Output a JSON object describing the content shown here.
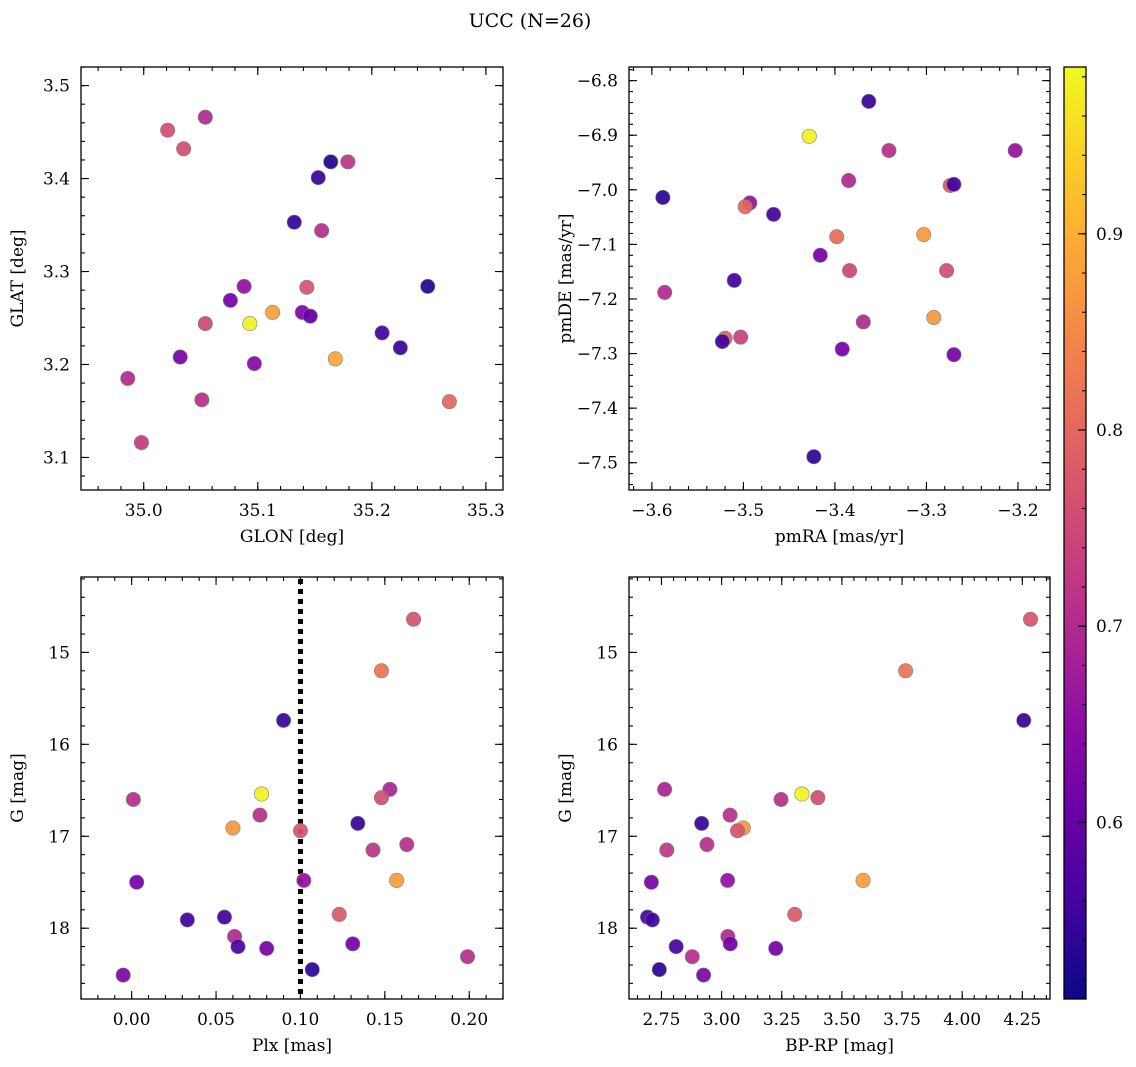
{
  "figure": {
    "title": "UCC (N=26)"
  },
  "colorbar": {
    "range": [
      0.51,
      0.985
    ],
    "ticks": [
      0.6,
      0.7,
      0.8,
      0.9
    ],
    "tick_labels": [
      "0.6",
      "0.7",
      "0.8",
      "0.9"
    ],
    "colormap": "plasma"
  },
  "chart_data": [
    {
      "type": "scatter",
      "xlabel": "GLON [deg]",
      "ylabel": "GLAT [deg]",
      "xlim": [
        34.945,
        35.315
      ],
      "ylim": [
        3.065,
        3.52
      ],
      "xticks": [
        35.0,
        35.1,
        35.2,
        35.3
      ],
      "xtick_labels": [
        "35.0",
        "35.1",
        "35.2",
        "35.3"
      ],
      "yticks": [
        3.1,
        3.2,
        3.3,
        3.4,
        3.5
      ],
      "ytick_labels": [
        "3.1",
        "3.2",
        "3.3",
        "3.4",
        "3.5"
      ],
      "y_inverted": false,
      "points": [
        {
          "x": 35.021,
          "y": 3.452,
          "c": 0.76
        },
        {
          "x": 35.035,
          "y": 3.432,
          "c": 0.76
        },
        {
          "x": 35.054,
          "y": 3.466,
          "c": 0.7
        },
        {
          "x": 35.164,
          "y": 3.418,
          "c": 0.53
        },
        {
          "x": 35.153,
          "y": 3.401,
          "c": 0.55
        },
        {
          "x": 35.179,
          "y": 3.418,
          "c": 0.72
        },
        {
          "x": 35.132,
          "y": 3.353,
          "c": 0.55
        },
        {
          "x": 35.156,
          "y": 3.344,
          "c": 0.71
        },
        {
          "x": 35.088,
          "y": 3.284,
          "c": 0.66
        },
        {
          "x": 35.143,
          "y": 3.283,
          "c": 0.77
        },
        {
          "x": 35.249,
          "y": 3.284,
          "c": 0.53
        },
        {
          "x": 35.076,
          "y": 3.269,
          "c": 0.62
        },
        {
          "x": 35.113,
          "y": 3.256,
          "c": 0.88
        },
        {
          "x": 35.139,
          "y": 3.256,
          "c": 0.63
        },
        {
          "x": 35.146,
          "y": 3.252,
          "c": 0.6
        },
        {
          "x": 35.054,
          "y": 3.244,
          "c": 0.75
        },
        {
          "x": 35.093,
          "y": 3.244,
          "c": 0.98
        },
        {
          "x": 35.209,
          "y": 3.234,
          "c": 0.56
        },
        {
          "x": 35.225,
          "y": 3.218,
          "c": 0.55
        },
        {
          "x": 35.032,
          "y": 3.208,
          "c": 0.62
        },
        {
          "x": 35.097,
          "y": 3.201,
          "c": 0.64
        },
        {
          "x": 35.168,
          "y": 3.206,
          "c": 0.89
        },
        {
          "x": 34.986,
          "y": 3.185,
          "c": 0.7
        },
        {
          "x": 35.051,
          "y": 3.162,
          "c": 0.71
        },
        {
          "x": 35.268,
          "y": 3.16,
          "c": 0.8
        },
        {
          "x": 34.998,
          "y": 3.116,
          "c": 0.73
        }
      ]
    },
    {
      "type": "scatter",
      "xlabel": "pmRA [mas/yr]",
      "ylabel": "pmDE [mas/yr]",
      "xlim": [
        -3.625,
        -3.165
      ],
      "ylim": [
        -7.55,
        -6.775
      ],
      "xticks": [
        -3.6,
        -3.5,
        -3.4,
        -3.3,
        -3.2
      ],
      "xtick_labels": [
        "−3.6",
        "−3.5",
        "−3.4",
        "−3.3",
        "−3.2"
      ],
      "yticks": [
        -7.5,
        -7.4,
        -7.3,
        -7.2,
        -7.1,
        -7.0,
        -6.9,
        -6.8
      ],
      "ytick_labels": [
        "−7.5",
        "−7.4",
        "−7.3",
        "−7.2",
        "−7.1",
        "−7.0",
        "−6.9",
        "−6.8"
      ],
      "y_inverted": false,
      "points": [
        {
          "x": -3.363,
          "y": -6.838,
          "c": 0.55
        },
        {
          "x": -3.428,
          "y": -6.902,
          "c": 0.98
        },
        {
          "x": -3.341,
          "y": -6.928,
          "c": 0.71
        },
        {
          "x": -3.203,
          "y": -6.928,
          "c": 0.66
        },
        {
          "x": -3.385,
          "y": -6.983,
          "c": 0.7
        },
        {
          "x": -3.274,
          "y": -6.992,
          "c": 0.77
        },
        {
          "x": -3.27,
          "y": -6.99,
          "c": 0.56
        },
        {
          "x": -3.588,
          "y": -7.014,
          "c": 0.54
        },
        {
          "x": -3.493,
          "y": -7.024,
          "c": 0.66
        },
        {
          "x": -3.498,
          "y": -7.031,
          "c": 0.8
        },
        {
          "x": -3.467,
          "y": -7.045,
          "c": 0.56
        },
        {
          "x": -3.398,
          "y": -7.086,
          "c": 0.81
        },
        {
          "x": -3.303,
          "y": -7.082,
          "c": 0.87
        },
        {
          "x": -3.416,
          "y": -7.12,
          "c": 0.62
        },
        {
          "x": -3.384,
          "y": -7.148,
          "c": 0.75
        },
        {
          "x": -3.278,
          "y": -7.148,
          "c": 0.76
        },
        {
          "x": -3.51,
          "y": -7.166,
          "c": 0.56
        },
        {
          "x": -3.586,
          "y": -7.188,
          "c": 0.7
        },
        {
          "x": -3.292,
          "y": -7.234,
          "c": 0.87
        },
        {
          "x": -3.369,
          "y": -7.242,
          "c": 0.7
        },
        {
          "x": -3.503,
          "y": -7.27,
          "c": 0.74
        },
        {
          "x": -3.52,
          "y": -7.272,
          "c": 0.79
        },
        {
          "x": -3.523,
          "y": -7.278,
          "c": 0.56
        },
        {
          "x": -3.392,
          "y": -7.292,
          "c": 0.62
        },
        {
          "x": -3.27,
          "y": -7.302,
          "c": 0.62
        },
        {
          "x": -3.423,
          "y": -7.489,
          "c": 0.54
        }
      ]
    },
    {
      "type": "scatter",
      "xlabel": "Plx [mas]",
      "ylabel": "G [mag]",
      "xlim": [
        -0.03,
        0.22
      ],
      "ylim": [
        18.77,
        14.18
      ],
      "xticks": [
        0.0,
        0.05,
        0.1,
        0.15,
        0.2
      ],
      "xtick_labels": [
        "0.00",
        "0.05",
        "0.10",
        "0.15",
        "0.20"
      ],
      "yticks": [
        15,
        16,
        17,
        18
      ],
      "ytick_labels": [
        "15",
        "16",
        "17",
        "18"
      ],
      "y_inverted": true,
      "reference_line": {
        "x": 0.1,
        "style": "dotted"
      },
      "points": [
        {
          "x": 0.167,
          "y": 14.64,
          "c": 0.77
        },
        {
          "x": 0.148,
          "y": 15.2,
          "c": 0.82
        },
        {
          "x": 0.09,
          "y": 15.74,
          "c": 0.55
        },
        {
          "x": 0.001,
          "y": 16.6,
          "c": 0.71
        },
        {
          "x": 0.077,
          "y": 16.54,
          "c": 0.98
        },
        {
          "x": 0.153,
          "y": 16.49,
          "c": 0.69
        },
        {
          "x": 0.148,
          "y": 16.58,
          "c": 0.76
        },
        {
          "x": 0.076,
          "y": 16.77,
          "c": 0.71
        },
        {
          "x": 0.06,
          "y": 16.91,
          "c": 0.87
        },
        {
          "x": 0.1,
          "y": 16.94,
          "c": 0.77
        },
        {
          "x": 0.134,
          "y": 16.86,
          "c": 0.55
        },
        {
          "x": 0.143,
          "y": 17.15,
          "c": 0.72
        },
        {
          "x": 0.163,
          "y": 17.09,
          "c": 0.71
        },
        {
          "x": 0.003,
          "y": 17.5,
          "c": 0.62
        },
        {
          "x": 0.102,
          "y": 17.48,
          "c": 0.66
        },
        {
          "x": 0.157,
          "y": 17.48,
          "c": 0.88
        },
        {
          "x": 0.033,
          "y": 17.91,
          "c": 0.56
        },
        {
          "x": 0.055,
          "y": 17.88,
          "c": 0.56
        },
        {
          "x": 0.123,
          "y": 17.85,
          "c": 0.78
        },
        {
          "x": 0.061,
          "y": 18.09,
          "c": 0.7
        },
        {
          "x": 0.063,
          "y": 18.2,
          "c": 0.57
        },
        {
          "x": 0.08,
          "y": 18.22,
          "c": 0.62
        },
        {
          "x": 0.131,
          "y": 18.17,
          "c": 0.62
        },
        {
          "x": 0.199,
          "y": 18.31,
          "c": 0.71
        },
        {
          "x": -0.005,
          "y": 18.51,
          "c": 0.63
        },
        {
          "x": 0.107,
          "y": 18.45,
          "c": 0.54
        }
      ]
    },
    {
      "type": "scatter",
      "xlabel": "BP-RP [mag]",
      "ylabel": "G [mag]",
      "xlim": [
        2.615,
        4.365
      ],
      "ylim": [
        18.77,
        14.18
      ],
      "xticks": [
        2.75,
        3.0,
        3.25,
        3.5,
        3.75,
        4.0,
        4.25
      ],
      "xtick_labels": [
        "2.75",
        "3.00",
        "3.25",
        "3.50",
        "3.75",
        "4.00",
        "4.25"
      ],
      "yticks": [
        15,
        16,
        17,
        18
      ],
      "ytick_labels": [
        "15",
        "16",
        "17",
        "18"
      ],
      "y_inverted": true,
      "points": [
        {
          "x": 4.284,
          "y": 14.64,
          "c": 0.77
        },
        {
          "x": 3.765,
          "y": 15.2,
          "c": 0.82
        },
        {
          "x": 4.256,
          "y": 15.74,
          "c": 0.55
        },
        {
          "x": 3.334,
          "y": 16.54,
          "c": 0.98
        },
        {
          "x": 2.763,
          "y": 16.49,
          "c": 0.69
        },
        {
          "x": 3.247,
          "y": 16.6,
          "c": 0.71
        },
        {
          "x": 3.4,
          "y": 16.58,
          "c": 0.76
        },
        {
          "x": 3.035,
          "y": 16.77,
          "c": 0.71
        },
        {
          "x": 2.917,
          "y": 16.86,
          "c": 0.55
        },
        {
          "x": 3.09,
          "y": 16.91,
          "c": 0.87
        },
        {
          "x": 3.066,
          "y": 16.94,
          "c": 0.77
        },
        {
          "x": 2.939,
          "y": 17.09,
          "c": 0.71
        },
        {
          "x": 2.772,
          "y": 17.15,
          "c": 0.72
        },
        {
          "x": 2.708,
          "y": 17.5,
          "c": 0.62
        },
        {
          "x": 3.025,
          "y": 17.48,
          "c": 0.66
        },
        {
          "x": 3.588,
          "y": 17.48,
          "c": 0.88
        },
        {
          "x": 2.692,
          "y": 17.88,
          "c": 0.56
        },
        {
          "x": 2.712,
          "y": 17.91,
          "c": 0.56
        },
        {
          "x": 3.304,
          "y": 17.85,
          "c": 0.78
        },
        {
          "x": 3.026,
          "y": 18.09,
          "c": 0.7
        },
        {
          "x": 3.036,
          "y": 18.17,
          "c": 0.62
        },
        {
          "x": 2.811,
          "y": 18.2,
          "c": 0.57
        },
        {
          "x": 3.225,
          "y": 18.22,
          "c": 0.62
        },
        {
          "x": 2.878,
          "y": 18.31,
          "c": 0.71
        },
        {
          "x": 2.741,
          "y": 18.45,
          "c": 0.54
        },
        {
          "x": 2.925,
          "y": 18.51,
          "c": 0.63
        }
      ]
    }
  ]
}
